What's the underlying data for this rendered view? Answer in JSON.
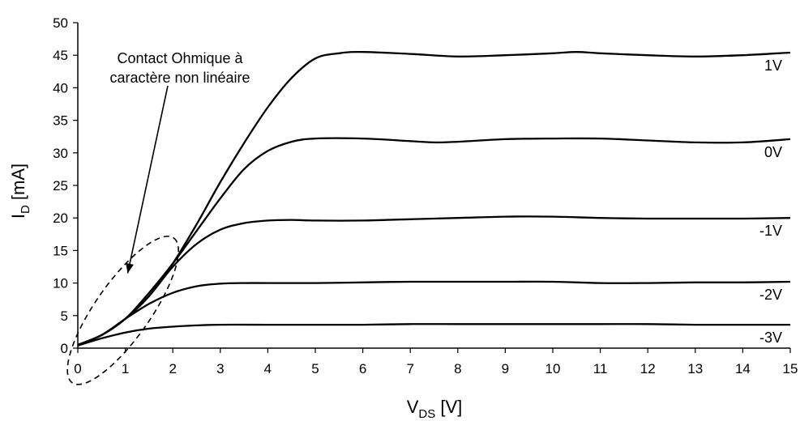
{
  "chart_data": {
    "type": "line",
    "xlabel": {
      "main": "V",
      "sub": "DS",
      "unit": " [V]"
    },
    "ylabel": {
      "main": "I",
      "sub": "D",
      "unit": " [mA]"
    },
    "xlim": [
      0,
      15
    ],
    "ylim": [
      0,
      50
    ],
    "xticks": [
      0,
      1,
      2,
      3,
      4,
      5,
      6,
      7,
      8,
      9,
      10,
      11,
      12,
      13,
      14,
      15
    ],
    "yticks": [
      0,
      5,
      10,
      15,
      20,
      25,
      30,
      35,
      40,
      45,
      50
    ],
    "grid": false,
    "series": [
      {
        "name": "1V",
        "x": [
          0,
          0.5,
          1,
          1.5,
          2,
          2.5,
          3,
          3.5,
          4,
          4.5,
          5,
          5.5,
          6,
          7,
          8,
          9,
          10,
          10.5,
          11,
          12,
          13,
          14,
          15
        ],
        "y": [
          0.5,
          2,
          4.5,
          8,
          13,
          19,
          25.5,
          31.5,
          37,
          41.5,
          44.5,
          45.3,
          45.5,
          45.2,
          44.8,
          45,
          45.3,
          45.5,
          45.3,
          45,
          44.8,
          45,
          45.4
        ]
      },
      {
        "name": "0V",
        "x": [
          0,
          0.5,
          1,
          1.5,
          2,
          2.5,
          3,
          3.5,
          4,
          4.5,
          5,
          6,
          7,
          7.5,
          8,
          9,
          10,
          11,
          12,
          13,
          14,
          15
        ],
        "y": [
          0.5,
          2,
          4.5,
          8.5,
          13,
          18,
          23,
          27.5,
          30.3,
          31.7,
          32.2,
          32.2,
          31.8,
          31.6,
          31.7,
          32.1,
          32.2,
          32.2,
          31.9,
          31.6,
          31.6,
          32.1
        ]
      },
      {
        "name": "-1V",
        "x": [
          0,
          0.5,
          1,
          1.5,
          2,
          2.5,
          3,
          3.5,
          4,
          4.5,
          5,
          6,
          7,
          8,
          9,
          10,
          11,
          12,
          13,
          14,
          15
        ],
        "y": [
          0.5,
          2,
          4.5,
          8,
          12.5,
          16,
          18.2,
          19.2,
          19.6,
          19.7,
          19.6,
          19.6,
          19.8,
          20,
          20.2,
          20.2,
          20,
          19.9,
          19.9,
          19.9,
          20
        ]
      },
      {
        "name": "-2V",
        "x": [
          0,
          0.5,
          1,
          1.5,
          2,
          2.5,
          3,
          3.5,
          4,
          5,
          6,
          7,
          8,
          9,
          10,
          11,
          12,
          13,
          14,
          15
        ],
        "y": [
          0.5,
          2,
          4.5,
          6.8,
          8.5,
          9.5,
          9.9,
          10,
          10,
          10,
          10.1,
          10.2,
          10.2,
          10.2,
          10.2,
          10,
          10,
          10.1,
          10.1,
          10.2
        ]
      },
      {
        "name": "-3V",
        "x": [
          0,
          0.5,
          1,
          1.5,
          2,
          2.5,
          3,
          4,
          5,
          6,
          7,
          8,
          9,
          10,
          11,
          12,
          13,
          14,
          15
        ],
        "y": [
          0.4,
          1.5,
          2.4,
          3,
          3.3,
          3.5,
          3.6,
          3.6,
          3.6,
          3.6,
          3.7,
          3.7,
          3.7,
          3.7,
          3.7,
          3.7,
          3.6,
          3.6,
          3.6
        ]
      }
    ],
    "annotations": [
      {
        "text_lines": [
          "Contact Ohmique à",
          "caractère non linéaire"
        ],
        "arrow_to": [
          1.05,
          11.5
        ],
        "ellipse_center": [
          0.95,
          5.8
        ],
        "ellipse_rx": 1.9,
        "ellipse_ry": 6.5,
        "ellipse_angle_deg": -55
      }
    ]
  }
}
